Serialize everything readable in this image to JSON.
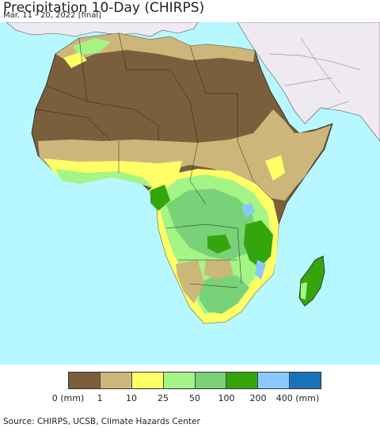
{
  "title": "Precipitation 10-Day (CHIRPS)",
  "subtitle": "Mar. 11 - 20, 2022 [final]",
  "source": "Source: CHIRPS, UCSB, Climate Hazards Center",
  "colors": {
    "ocean": "#b7f7ff",
    "other_land": "#efe9f1",
    "class_0": "#7b5e3b",
    "class_1": "#cdb67a",
    "class_10": "#ffff66",
    "class_25": "#a5f586",
    "class_50": "#79d277",
    "class_100": "#35a50e",
    "class_200": "#8ac9ff",
    "class_400": "#1a72b8"
  },
  "legend": {
    "swatches": [
      "#7b5e3b",
      "#cdb67a",
      "#ffff66",
      "#a5f586",
      "#79d277",
      "#35a50e",
      "#8ac9ff",
      "#1a72b8"
    ],
    "ticks": [
      "0 (mm)",
      "1",
      "10",
      "25",
      "50",
      "100",
      "200",
      "400 (mm)"
    ]
  }
}
